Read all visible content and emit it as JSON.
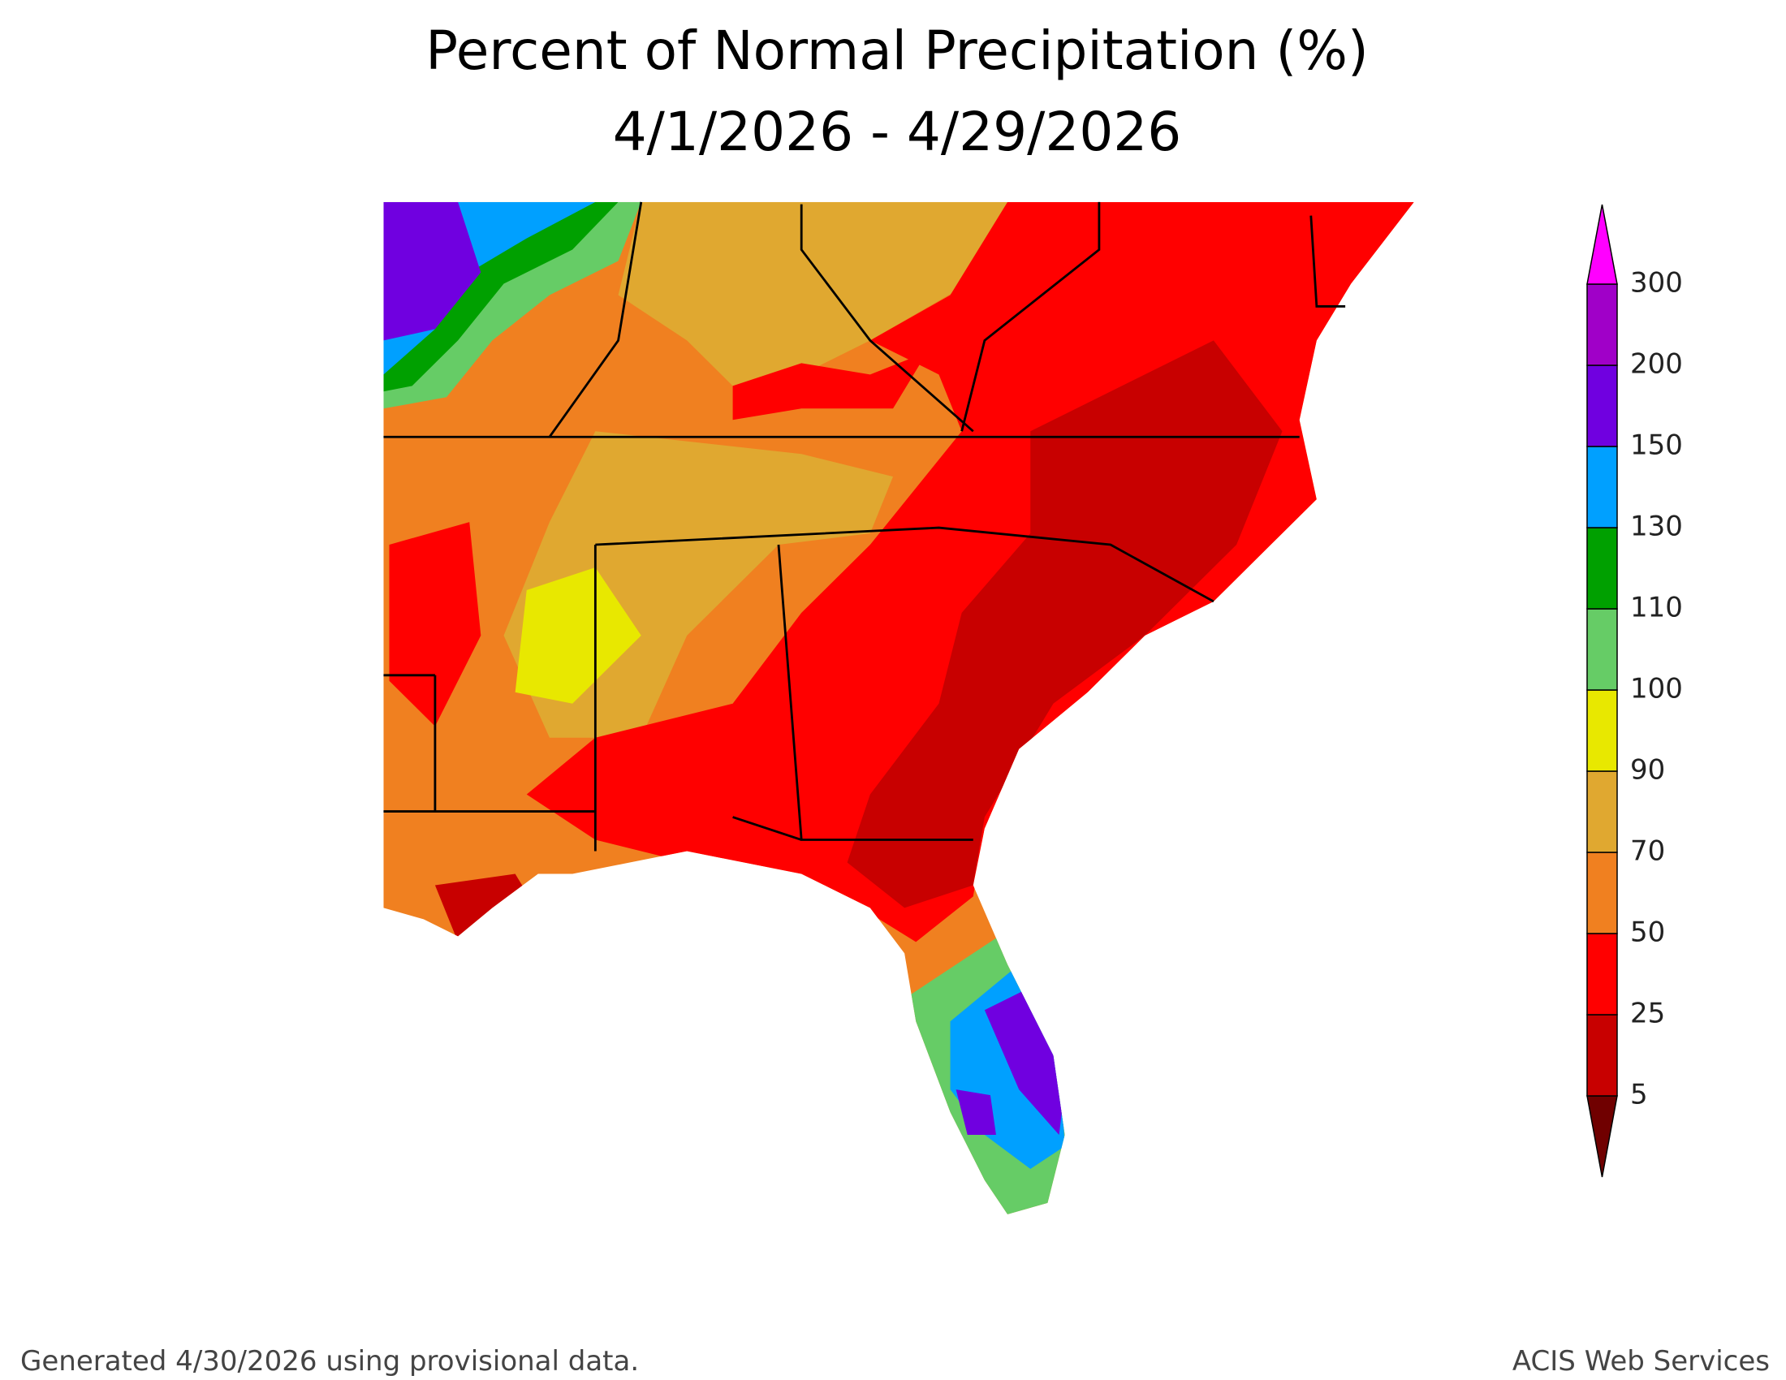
{
  "title": [
    "Percent of Normal Precipitation (%)",
    "4/1/2026 - 4/29/2026"
  ],
  "legend": {
    "ticks": [
      5,
      25,
      50,
      70,
      90,
      100,
      110,
      130,
      150,
      200,
      300
    ],
    "colors": [
      "#700000",
      "#c80000",
      "#ff0000",
      "#f08020",
      "#e0a830",
      "#e8e800",
      "#66cc66",
      "#00a000",
      "#00a0ff",
      "#7000e0",
      "#a000c8",
      "#ff00ff"
    ]
  },
  "footer": {
    "left": "Generated 4/30/2026 using provisional data.",
    "right": "ACIS Web Services"
  }
}
